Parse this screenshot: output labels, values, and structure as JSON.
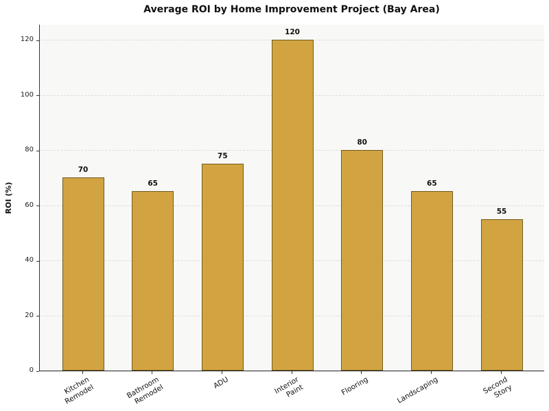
{
  "figure": {
    "title": "Average ROI by Home Improvement Project (Bay Area)",
    "ylabel": "ROI (%)"
  },
  "chart_data": {
    "type": "bar",
    "title": "Average ROI by Home Improvement Project (Bay Area)",
    "xlabel": "",
    "ylabel": "ROI (%)",
    "categories": [
      "Kitchen\nRemodel",
      "Bathroom\nRemodel",
      "ADU",
      "Interior\nPaint",
      "Flooring",
      "Landscaping",
      "Second\nStory"
    ],
    "values": [
      70,
      65,
      75,
      120,
      80,
      65,
      55
    ],
    "bar_value_labels": [
      "70",
      "65",
      "75",
      "120",
      "80",
      "65",
      "55"
    ],
    "yticks": [
      0,
      20,
      40,
      60,
      80,
      100,
      120
    ],
    "ylim": [
      0,
      126
    ],
    "grid": {
      "axis": "y",
      "style": "dashed",
      "color": "#dcdcdc"
    },
    "legend": "none",
    "x_tick_rotation_deg": 30,
    "colors": {
      "bar_fill": "#d2a441",
      "bar_edge": "#70591c",
      "plot_background": "#f8f8f6",
      "figure_background": "#ffffff",
      "text": "#111111",
      "spine": "#333333"
    }
  }
}
